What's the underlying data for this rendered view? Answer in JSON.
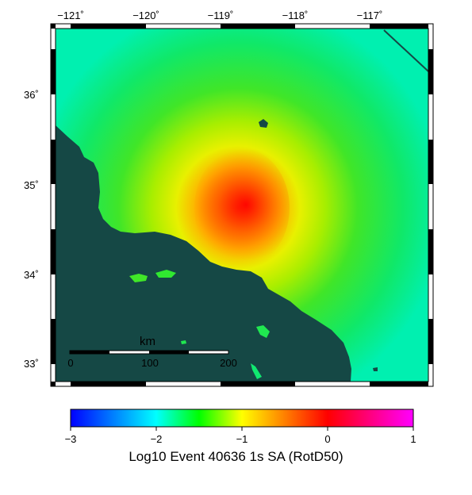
{
  "map": {
    "lon_labels": [
      "−121˚",
      "−120˚",
      "−119˚",
      "−118˚",
      "−117˚"
    ],
    "lat_labels": [
      "36˚",
      "35˚",
      "34˚",
      "33˚"
    ],
    "colors": {
      "ocean": "#154845",
      "frame_dark": "#000000",
      "frame_light": "#ffffff"
    }
  },
  "scale_bar": {
    "unit": "km",
    "ticks": [
      "0",
      "100",
      "200"
    ]
  },
  "colorbar": {
    "ticks": [
      "−3",
      "−2",
      "−1",
      "0",
      "1"
    ],
    "title": "Log10 Event 40636 1s SA (RotD50)",
    "colors": [
      "#0000ff",
      "#00ffff",
      "#00ff00",
      "#ffff00",
      "#ff0000",
      "#ff00ff"
    ]
  }
}
